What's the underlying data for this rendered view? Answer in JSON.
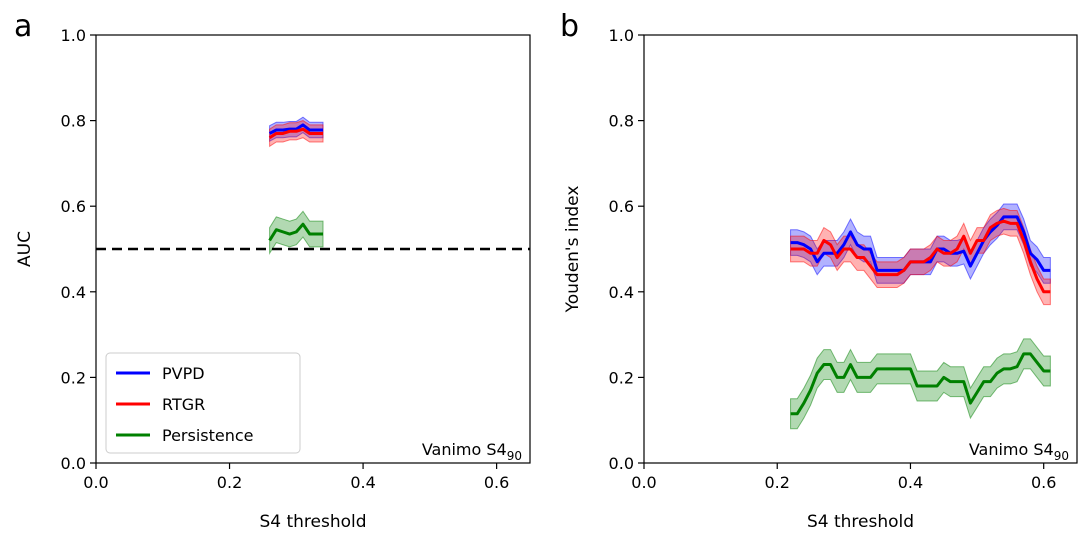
{
  "colors": {
    "PVPD": "#0000ff",
    "RTGR": "#ff0000",
    "Persistence": "#008000",
    "reference": "#000000"
  },
  "chart_data": [
    {
      "panel_letter": "a",
      "type": "line",
      "xlabel": "S4 threshold",
      "ylabel": "AUC",
      "xlim": [
        0.0,
        0.65
      ],
      "ylim": [
        0.0,
        1.0
      ],
      "xticks": [
        "0.0",
        "0.2",
        "0.4",
        "0.6"
      ],
      "yticks": [
        "0.0",
        "0.2",
        "0.4",
        "0.6",
        "0.8",
        "1.0"
      ],
      "annotation": {
        "base": "Vanimo S4",
        "sub": "90"
      },
      "reference_line": {
        "y": 0.5,
        "style": "dashed"
      },
      "legend": {
        "position": "lower-left",
        "entries": [
          "PVPD",
          "RTGR",
          "Persistence"
        ]
      },
      "series": [
        {
          "name": "PVPD",
          "x": [
            0.26,
            0.27,
            0.28,
            0.29,
            0.3,
            0.31,
            0.32,
            0.33,
            0.34
          ],
          "y": [
            0.77,
            0.778,
            0.778,
            0.78,
            0.78,
            0.79,
            0.778,
            0.778,
            0.778
          ],
          "band": 0.018
        },
        {
          "name": "RTGR",
          "x": [
            0.26,
            0.27,
            0.28,
            0.29,
            0.3,
            0.31,
            0.32,
            0.33,
            0.34
          ],
          "y": [
            0.76,
            0.77,
            0.77,
            0.775,
            0.775,
            0.78,
            0.77,
            0.77,
            0.77
          ],
          "band": 0.02
        },
        {
          "name": "Persistence",
          "x": [
            0.26,
            0.27,
            0.28,
            0.29,
            0.3,
            0.31,
            0.32,
            0.33,
            0.34
          ],
          "y": [
            0.52,
            0.545,
            0.54,
            0.535,
            0.54,
            0.558,
            0.535,
            0.535,
            0.535
          ],
          "band": 0.03
        }
      ]
    },
    {
      "panel_letter": "b",
      "type": "line",
      "xlabel": "S4 threshold",
      "ylabel": "Youden's index",
      "xlim": [
        0.0,
        0.65
      ],
      "ylim": [
        0.0,
        1.0
      ],
      "xticks": [
        "0.0",
        "0.2",
        "0.4",
        "0.6"
      ],
      "yticks": [
        "0.0",
        "0.2",
        "0.4",
        "0.6",
        "0.8",
        "1.0"
      ],
      "annotation": {
        "base": "Vanimo S4",
        "sub": "90"
      },
      "series": [
        {
          "name": "PVPD",
          "x": [
            0.22,
            0.23,
            0.24,
            0.25,
            0.26,
            0.27,
            0.28,
            0.29,
            0.3,
            0.31,
            0.32,
            0.33,
            0.34,
            0.35,
            0.36,
            0.37,
            0.38,
            0.39,
            0.4,
            0.41,
            0.42,
            0.43,
            0.44,
            0.45,
            0.46,
            0.47,
            0.48,
            0.49,
            0.5,
            0.51,
            0.52,
            0.53,
            0.54,
            0.55,
            0.56,
            0.57,
            0.58,
            0.59,
            0.6,
            0.61
          ],
          "y": [
            0.515,
            0.515,
            0.51,
            0.5,
            0.47,
            0.49,
            0.49,
            0.49,
            0.51,
            0.54,
            0.51,
            0.5,
            0.5,
            0.45,
            0.45,
            0.45,
            0.45,
            0.45,
            0.47,
            0.47,
            0.47,
            0.47,
            0.5,
            0.5,
            0.49,
            0.49,
            0.495,
            0.46,
            0.49,
            0.52,
            0.54,
            0.555,
            0.575,
            0.575,
            0.575,
            0.54,
            0.49,
            0.475,
            0.45,
            0.45
          ],
          "band": 0.03
        },
        {
          "name": "RTGR",
          "x": [
            0.22,
            0.23,
            0.24,
            0.25,
            0.26,
            0.27,
            0.28,
            0.29,
            0.3,
            0.31,
            0.32,
            0.33,
            0.34,
            0.35,
            0.36,
            0.37,
            0.38,
            0.39,
            0.4,
            0.41,
            0.42,
            0.43,
            0.44,
            0.45,
            0.46,
            0.47,
            0.48,
            0.49,
            0.5,
            0.51,
            0.52,
            0.53,
            0.54,
            0.55,
            0.56,
            0.57,
            0.58,
            0.59,
            0.6,
            0.61
          ],
          "y": [
            0.5,
            0.5,
            0.5,
            0.49,
            0.49,
            0.52,
            0.51,
            0.48,
            0.5,
            0.5,
            0.48,
            0.48,
            0.46,
            0.44,
            0.44,
            0.44,
            0.44,
            0.45,
            0.47,
            0.47,
            0.47,
            0.48,
            0.5,
            0.49,
            0.49,
            0.5,
            0.53,
            0.49,
            0.52,
            0.52,
            0.55,
            0.56,
            0.565,
            0.56,
            0.56,
            0.52,
            0.47,
            0.43,
            0.4,
            0.4
          ],
          "band": 0.03
        },
        {
          "name": "Persistence",
          "x": [
            0.22,
            0.23,
            0.24,
            0.25,
            0.26,
            0.27,
            0.28,
            0.29,
            0.3,
            0.31,
            0.32,
            0.33,
            0.34,
            0.35,
            0.36,
            0.37,
            0.38,
            0.39,
            0.4,
            0.41,
            0.42,
            0.43,
            0.44,
            0.45,
            0.46,
            0.47,
            0.48,
            0.49,
            0.5,
            0.51,
            0.52,
            0.53,
            0.54,
            0.55,
            0.56,
            0.57,
            0.58,
            0.59,
            0.6,
            0.61
          ],
          "y": [
            0.115,
            0.115,
            0.14,
            0.17,
            0.21,
            0.23,
            0.23,
            0.2,
            0.2,
            0.23,
            0.2,
            0.2,
            0.2,
            0.22,
            0.22,
            0.22,
            0.22,
            0.22,
            0.22,
            0.18,
            0.18,
            0.18,
            0.18,
            0.2,
            0.19,
            0.19,
            0.19,
            0.14,
            0.165,
            0.19,
            0.19,
            0.21,
            0.22,
            0.22,
            0.225,
            0.255,
            0.255,
            0.235,
            0.215,
            0.215
          ],
          "band": 0.035
        }
      ]
    }
  ]
}
